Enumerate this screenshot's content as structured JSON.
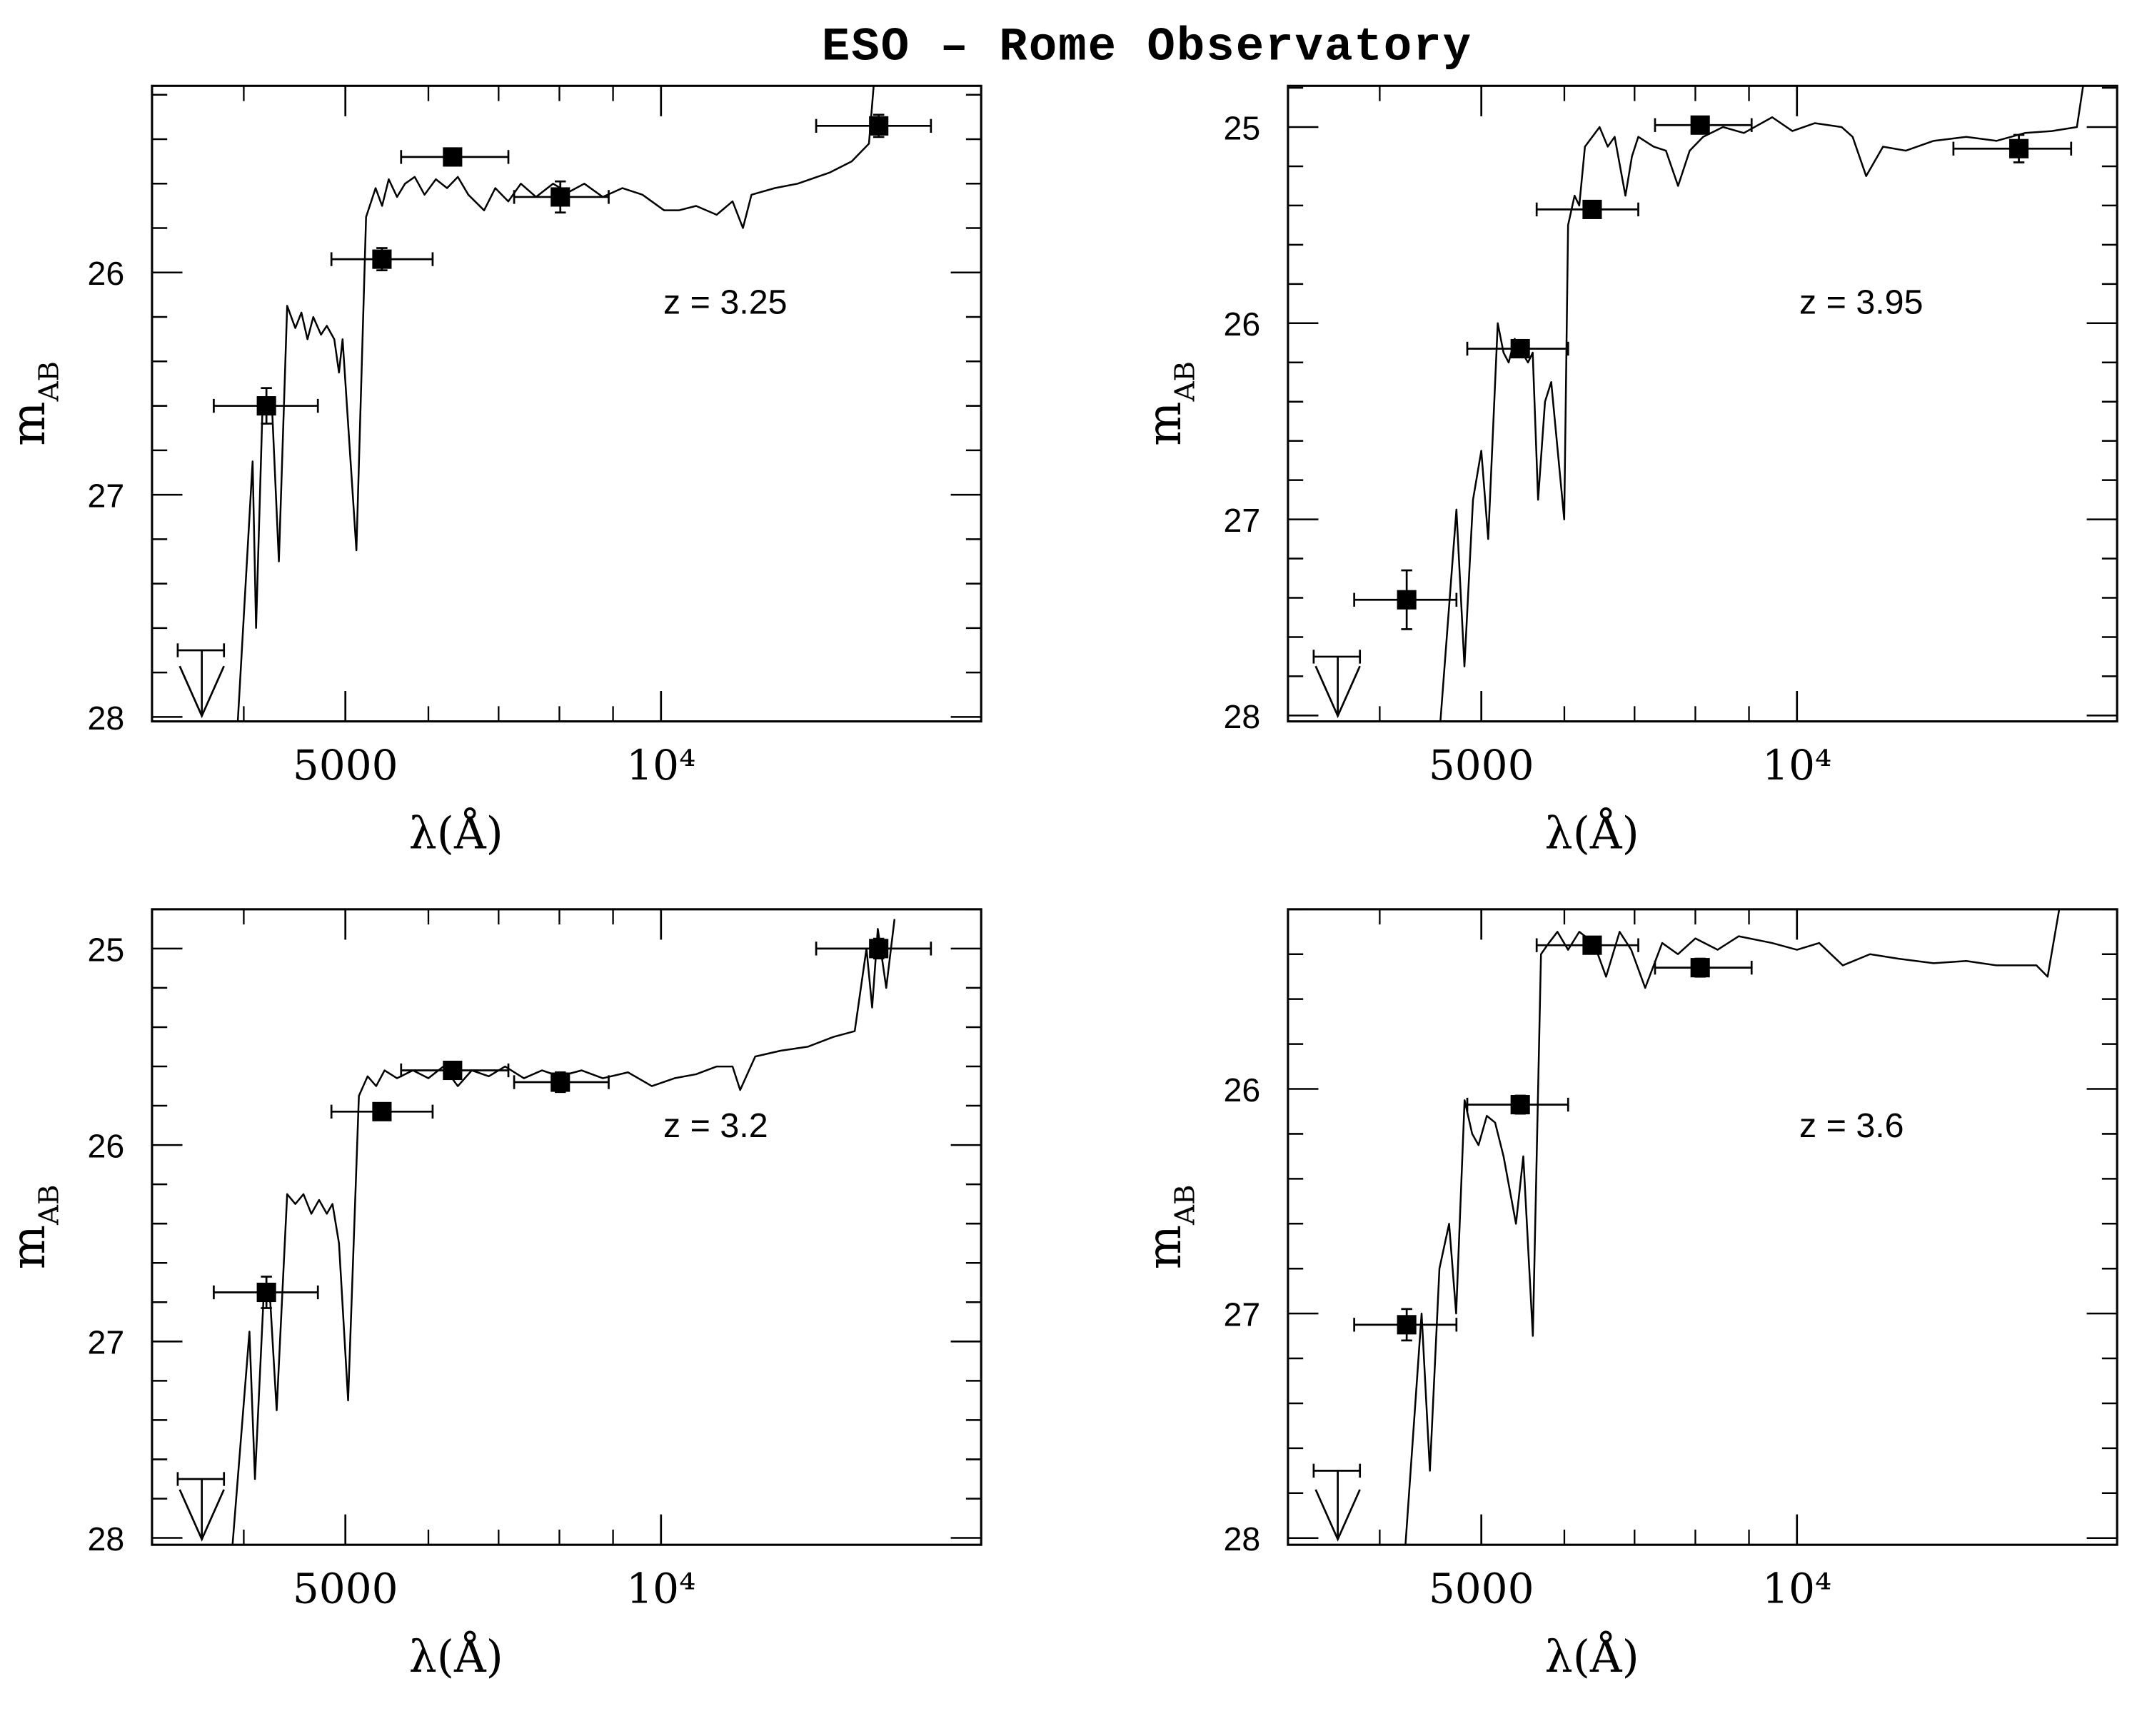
{
  "title": "ESO – Rome Observatory",
  "chart_data": [
    {
      "type": "scatter+line",
      "panel": "top-left",
      "annotation": "z = 3.25",
      "xlabel": "λ(Å)",
      "ylabel_main": "m",
      "ylabel_sub": "AB",
      "xscale": "log",
      "xlim": [
        3270,
        20200
      ],
      "ylim": [
        28.02,
        25.16
      ],
      "x_ticks_major": [
        {
          "value": 5000,
          "label": "5000"
        },
        {
          "value": 10000,
          "label": "10⁴"
        }
      ],
      "x_ticks_minor": [
        4000,
        6000,
        7000,
        8000,
        9000
      ],
      "y_ticks_major": [
        {
          "value": 26,
          "label": "26"
        },
        {
          "value": 27,
          "label": "27"
        },
        {
          "value": 28,
          "label": "28"
        }
      ],
      "y_tick_step_minor": 0.2,
      "photometry": [
        {
          "lambda": 4204,
          "mag": 26.6,
          "lambda_lo": 3745,
          "lambda_hi": 4707,
          "err": 0.08
        },
        {
          "lambda": 5418,
          "mag": 25.94,
          "lambda_lo": 4849,
          "lambda_hi": 6056,
          "err": 0.05
        },
        {
          "lambda": 6327,
          "mag": 25.48,
          "lambda_lo": 5651,
          "lambda_hi": 7152,
          "err": 0.03
        },
        {
          "lambda": 8016,
          "mag": 25.66,
          "lambda_lo": 7243,
          "lambda_hi": 8914,
          "err": 0.07
        },
        {
          "lambda": 16130,
          "mag": 25.34,
          "lambda_lo": 14060,
          "lambda_hi": 18090,
          "err": 0.05
        }
      ],
      "upper_limit": {
        "lambda": 3648,
        "mag": 27.7,
        "lambda_lo": 3460,
        "lambda_hi": 3830
      },
      "spectrum": [
        [
          3944,
          28.05
        ],
        [
          4078,
          26.85
        ],
        [
          4110,
          27.6
        ],
        [
          4167,
          26.62
        ],
        [
          4255,
          26.6
        ],
        [
          4320,
          27.3
        ],
        [
          4400,
          26.15
        ],
        [
          4480,
          26.25
        ],
        [
          4540,
          26.18
        ],
        [
          4600,
          26.3
        ],
        [
          4660,
          26.2
        ],
        [
          4740,
          26.28
        ],
        [
          4800,
          26.24
        ],
        [
          4879,
          26.3
        ],
        [
          4930,
          26.45
        ],
        [
          4970,
          26.3
        ],
        [
          5123,
          27.25
        ],
        [
          5233,
          25.75
        ],
        [
          5344,
          25.62
        ],
        [
          5420,
          25.7
        ],
        [
          5500,
          25.58
        ],
        [
          5600,
          25.66
        ],
        [
          5700,
          25.6
        ],
        [
          5823,
          25.57
        ],
        [
          5950,
          25.65
        ],
        [
          6100,
          25.58
        ],
        [
          6250,
          25.62
        ],
        [
          6400,
          25.57
        ],
        [
          6550,
          25.65
        ],
        [
          6781,
          25.72
        ],
        [
          6950,
          25.62
        ],
        [
          7150,
          25.68
        ],
        [
          7350,
          25.6
        ],
        [
          7600,
          25.66
        ],
        [
          7890,
          25.6
        ],
        [
          8150,
          25.64
        ],
        [
          8450,
          25.6
        ],
        [
          8800,
          25.66
        ],
        [
          9188,
          25.62
        ],
        [
          9600,
          25.65
        ],
        [
          10070,
          25.72
        ],
        [
          10400,
          25.72
        ],
        [
          10800,
          25.7
        ],
        [
          11300,
          25.74
        ],
        [
          11700,
          25.68
        ],
        [
          11970,
          25.8
        ],
        [
          12200,
          25.65
        ],
        [
          12840,
          25.62
        ],
        [
          13500,
          25.6
        ],
        [
          14490,
          25.55
        ],
        [
          15200,
          25.5
        ],
        [
          15790,
          25.42
        ],
        [
          15990,
          25.1
        ],
        [
          16370,
          25.15
        ],
        [
          17140,
          25.15
        ]
      ]
    },
    {
      "type": "scatter+line",
      "panel": "top-right",
      "annotation": "z = 3.95",
      "xlabel": "λ(Å)",
      "ylabel_main": "m",
      "ylabel_sub": "AB",
      "xscale": "log",
      "xlim": [
        3270,
        20200
      ],
      "ylim": [
        28.03,
        24.79
      ],
      "x_ticks_major": [
        {
          "value": 5000,
          "label": "5000"
        },
        {
          "value": 10000,
          "label": "10⁴"
        }
      ],
      "x_ticks_minor": [
        4000,
        6000,
        7000,
        8000,
        9000
      ],
      "y_ticks_major": [
        {
          "value": 25,
          "label": "25"
        },
        {
          "value": 26,
          "label": "26"
        },
        {
          "value": 27,
          "label": "27"
        },
        {
          "value": 28,
          "label": "28"
        }
      ],
      "y_tick_step_minor": 0.2,
      "photometry": [
        {
          "lambda": 4244,
          "mag": 27.41,
          "lambda_lo": 3782,
          "lambda_hi": 4734,
          "err": 0.15
        },
        {
          "lambda": 5446,
          "mag": 26.13,
          "lambda_lo": 4848,
          "lambda_hi": 6050,
          "err": 0.04
        },
        {
          "lambda": 6378,
          "mag": 25.42,
          "lambda_lo": 5646,
          "lambda_hi": 7058,
          "err": 0.03
        },
        {
          "lambda": 8085,
          "mag": 24.99,
          "lambda_lo": 7322,
          "lambda_hi": 9052,
          "err": 0.03
        },
        {
          "lambda": 16280,
          "mag": 25.11,
          "lambda_lo": 14100,
          "lambda_hi": 18260,
          "err": 0.07
        }
      ],
      "upper_limit": {
        "lambda": 3648,
        "mag": 27.7,
        "lambda_lo": 3460,
        "lambda_hi": 3830
      },
      "spectrum": [
        [
          4567,
          28.05
        ],
        [
          4734,
          26.95
        ],
        [
          4818,
          27.75
        ],
        [
          4909,
          26.9
        ],
        [
          5000,
          26.65
        ],
        [
          5076,
          27.1
        ],
        [
          5184,
          26.0
        ],
        [
          5250,
          26.15
        ],
        [
          5309,
          26.2
        ],
        [
          5380,
          26.08
        ],
        [
          5468,
          26.15
        ],
        [
          5540,
          26.2
        ],
        [
          5597,
          26.15
        ],
        [
          5664,
          26.9
        ],
        [
          5750,
          26.4
        ],
        [
          5829,
          26.3
        ],
        [
          5999,
          27.0
        ],
        [
          6050,
          25.5
        ],
        [
          6137,
          25.35
        ],
        [
          6200,
          25.4
        ],
        [
          6277,
          25.1
        ],
        [
          6380,
          25.05
        ],
        [
          6483,
          25.0
        ],
        [
          6600,
          25.1
        ],
        [
          6700,
          25.05
        ],
        [
          6861,
          25.35
        ],
        [
          6960,
          25.15
        ],
        [
          7058,
          25.05
        ],
        [
          7300,
          25.1
        ],
        [
          7500,
          25.12
        ],
        [
          7703,
          25.3
        ],
        [
          7900,
          25.12
        ],
        [
          8137,
          25.05
        ],
        [
          8500,
          25.0
        ],
        [
          8900,
          25.03
        ],
        [
          9472,
          24.95
        ],
        [
          9900,
          25.02
        ],
        [
          10400,
          24.98
        ],
        [
          11030,
          25.0
        ],
        [
          11300,
          25.05
        ],
        [
          11640,
          25.25
        ],
        [
          12080,
          25.1
        ],
        [
          12700,
          25.12
        ],
        [
          13500,
          25.07
        ],
        [
          14500,
          25.05
        ],
        [
          15500,
          25.07
        ],
        [
          16500,
          25.03
        ],
        [
          17500,
          25.02
        ],
        [
          18490,
          25.0
        ],
        [
          18760,
          24.78
        ]
      ]
    },
    {
      "type": "scatter+line",
      "panel": "bottom-left",
      "annotation": "z = 3.2",
      "xlabel": "λ(Å)",
      "ylabel_main": "m",
      "ylabel_sub": "AB",
      "xscale": "log",
      "xlim": [
        3270,
        20200
      ],
      "ylim": [
        28.035,
        24.8
      ],
      "x_ticks_major": [
        {
          "value": 5000,
          "label": "5000"
        },
        {
          "value": 10000,
          "label": "10⁴"
        }
      ],
      "x_ticks_minor": [
        4000,
        6000,
        7000,
        8000,
        9000
      ],
      "y_ticks_major": [
        {
          "value": 25,
          "label": "25"
        },
        {
          "value": 26,
          "label": "26"
        },
        {
          "value": 27,
          "label": "27"
        },
        {
          "value": 28,
          "label": "28"
        }
      ],
      "y_tick_step_minor": 0.2,
      "photometry": [
        {
          "lambda": 4204,
          "mag": 26.75,
          "lambda_lo": 3745,
          "lambda_hi": 4707,
          "err": 0.08
        },
        {
          "lambda": 5418,
          "mag": 25.83,
          "lambda_lo": 4849,
          "lambda_hi": 6056,
          "err": 0.04
        },
        {
          "lambda": 6327,
          "mag": 25.62,
          "lambda_lo": 5651,
          "lambda_hi": 7152,
          "err": 0.03
        },
        {
          "lambda": 8016,
          "mag": 25.68,
          "lambda_lo": 7243,
          "lambda_hi": 8914,
          "err": 0.05
        },
        {
          "lambda": 16130,
          "mag": 25.0,
          "lambda_lo": 14060,
          "lambda_hi": 18090,
          "err": 0.05
        }
      ],
      "upper_limit": {
        "lambda": 3648,
        "mag": 27.7,
        "lambda_lo": 3460,
        "lambda_hi": 3830
      },
      "spectrum": [
        [
          3900,
          28.05
        ],
        [
          4050,
          26.95
        ],
        [
          4100,
          27.7
        ],
        [
          4180,
          26.75
        ],
        [
          4240,
          26.8
        ],
        [
          4300,
          27.35
        ],
        [
          4400,
          26.25
        ],
        [
          4480,
          26.3
        ],
        [
          4560,
          26.25
        ],
        [
          4640,
          26.35
        ],
        [
          4720,
          26.28
        ],
        [
          4800,
          26.35
        ],
        [
          4860,
          26.3
        ],
        [
          4930,
          26.5
        ],
        [
          5030,
          27.3
        ],
        [
          5150,
          25.75
        ],
        [
          5250,
          25.65
        ],
        [
          5350,
          25.7
        ],
        [
          5450,
          25.62
        ],
        [
          5600,
          25.66
        ],
        [
          5800,
          25.62
        ],
        [
          6000,
          25.66
        ],
        [
          6200,
          25.6
        ],
        [
          6400,
          25.7
        ],
        [
          6600,
          25.62
        ],
        [
          6850,
          25.65
        ],
        [
          7100,
          25.6
        ],
        [
          7400,
          25.66
        ],
        [
          7700,
          25.62
        ],
        [
          8000,
          25.65
        ],
        [
          8400,
          25.62
        ],
        [
          8800,
          25.66
        ],
        [
          9300,
          25.63
        ],
        [
          9800,
          25.7
        ],
        [
          10300,
          25.66
        ],
        [
          10800,
          25.64
        ],
        [
          11300,
          25.6
        ],
        [
          11700,
          25.6
        ],
        [
          11900,
          25.72
        ],
        [
          12300,
          25.55
        ],
        [
          13000,
          25.52
        ],
        [
          13800,
          25.5
        ],
        [
          14600,
          25.45
        ],
        [
          15300,
          25.42
        ],
        [
          15700,
          25.0
        ],
        [
          15900,
          25.3
        ],
        [
          16100,
          24.9
        ],
        [
          16400,
          25.2
        ],
        [
          16700,
          24.85
        ]
      ]
    },
    {
      "type": "scatter+line",
      "panel": "bottom-right",
      "annotation": "z = 3.6",
      "xlabel": "λ(Å)",
      "ylabel_main": "m",
      "ylabel_sub": "AB",
      "xscale": "log",
      "xlim": [
        3270,
        20200
      ],
      "ylim": [
        28.03,
        25.2
      ],
      "x_ticks_major": [
        {
          "value": 5000,
          "label": "5000"
        },
        {
          "value": 10000,
          "label": "10⁴"
        }
      ],
      "x_ticks_minor": [
        4000,
        6000,
        7000,
        8000,
        9000
      ],
      "y_ticks_major": [
        {
          "value": 26,
          "label": "26"
        },
        {
          "value": 27,
          "label": "27"
        },
        {
          "value": 28,
          "label": "28"
        }
      ],
      "y_tick_step_minor": 0.2,
      "photometry": [
        {
          "lambda": 4244,
          "mag": 27.05,
          "lambda_lo": 3782,
          "lambda_hi": 4734,
          "err": 0.07
        },
        {
          "lambda": 5446,
          "mag": 26.07,
          "lambda_lo": 4848,
          "lambda_hi": 6050,
          "err": 0.04
        },
        {
          "lambda": 6378,
          "mag": 25.36,
          "lambda_lo": 5646,
          "lambda_hi": 7058,
          "err": 0.03
        },
        {
          "lambda": 8085,
          "mag": 25.46,
          "lambda_lo": 7322,
          "lambda_hi": 9052,
          "err": 0.04
        }
      ],
      "upper_limit": {
        "lambda": 3648,
        "mag": 27.7,
        "lambda_lo": 3460,
        "lambda_hi": 3830
      },
      "spectrum": [
        [
          4230,
          28.05
        ],
        [
          4385,
          27.0
        ],
        [
          4466,
          27.7
        ],
        [
          4561,
          26.8
        ],
        [
          4659,
          26.6
        ],
        [
          4731,
          27.0
        ],
        [
          4819,
          26.05
        ],
        [
          4900,
          26.2
        ],
        [
          4970,
          26.25
        ],
        [
          5060,
          26.12
        ],
        [
          5153,
          26.15
        ],
        [
          5250,
          26.3
        ],
        [
          5395,
          26.6
        ],
        [
          5483,
          26.3
        ],
        [
          5598,
          27.1
        ],
        [
          5700,
          25.4
        ],
        [
          5800,
          25.35
        ],
        [
          5910,
          25.3
        ],
        [
          6050,
          25.38
        ],
        [
          6200,
          25.3
        ],
        [
          6400,
          25.35
        ],
        [
          6575,
          25.5
        ],
        [
          6775,
          25.3
        ],
        [
          6950,
          25.38
        ],
        [
          7166,
          25.55
        ],
        [
          7438,
          25.35
        ],
        [
          7700,
          25.4
        ],
        [
          8000,
          25.33
        ],
        [
          8400,
          25.38
        ],
        [
          8800,
          25.32
        ],
        [
          9468,
          25.35
        ],
        [
          10000,
          25.38
        ],
        [
          10500,
          25.35
        ],
        [
          11060,
          25.45
        ],
        [
          11740,
          25.4
        ],
        [
          12500,
          25.42
        ],
        [
          13500,
          25.44
        ],
        [
          14500,
          25.43
        ],
        [
          15500,
          25.45
        ],
        [
          16920,
          25.45
        ],
        [
          17340,
          25.5
        ],
        [
          17790,
          25.2
        ]
      ]
    }
  ]
}
